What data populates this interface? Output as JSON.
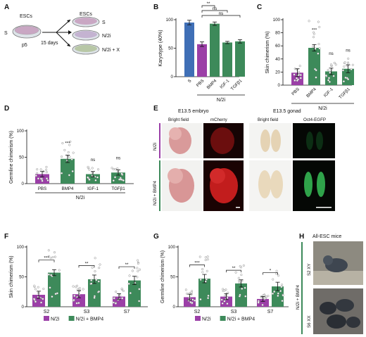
{
  "colors": {
    "purple": "#9b3fa7",
    "blue": "#3f6fb6",
    "green": "#3d8a5a",
    "greenLight": "#7cb98e",
    "dot": "#ffffff"
  },
  "panelA": {
    "letter": "A",
    "escs_left": "ESCs",
    "s_left": "S",
    "p5": "p5",
    "days": "15 days",
    "escs_right": "ESCs",
    "dish1": "S",
    "dish2": "N/2i",
    "dish3": "N/2i + X"
  },
  "panelE": {
    "letter": "E",
    "embryo_header": "E13.5 embryo",
    "gonad_header": "E13.5 gonad",
    "bf1": "Bright field",
    "mcherry": "mCherry",
    "bf2": "Bright field",
    "oct4": "Oct4-EGFP",
    "row1": "N/2i",
    "row2": "N/2i + BMP4"
  },
  "panelH": {
    "letter": "H",
    "title": "All-ESC mice",
    "side": "N/2i + BMP4",
    "row1": "S2 XY",
    "row2": "S6 XX"
  },
  "chart_data": [
    {
      "id": "B",
      "type": "bar",
      "ylabel": "Karyotype (40%)",
      "ylim": [
        0,
        100
      ],
      "ticks": [
        0,
        50,
        100
      ],
      "categories": [
        "S",
        "PBS",
        "BMP4",
        "IGF-1",
        "TGFβ1"
      ],
      "values": [
        95,
        57,
        93,
        60,
        62
      ],
      "errors": [
        4,
        4,
        3,
        2,
        3
      ],
      "colors": [
        "blue",
        "purple",
        "green",
        "green",
        "green"
      ],
      "group_label": "N/2i",
      "brackets": [
        {
          "from": 1,
          "to": 2,
          "text": "**"
        },
        {
          "from": 1,
          "to": 3,
          "text": "ns"
        },
        {
          "from": 1,
          "to": 4,
          "text": "ns"
        }
      ]
    },
    {
      "id": "C",
      "type": "bar",
      "ylabel": "Skin chimerism (%)",
      "ylim": [
        0,
        100
      ],
      "ticks": [
        0,
        20,
        40,
        60,
        80,
        100
      ],
      "categories": [
        "PBS",
        "BMP4",
        "IGF-1",
        "TGFβ1"
      ],
      "values": [
        19,
        57,
        21,
        25
      ],
      "errors": [
        6,
        5,
        5,
        6
      ],
      "colors": [
        "purple",
        "green",
        "green",
        "green"
      ],
      "annotations": [
        "",
        "***",
        "ns",
        "ns"
      ],
      "group_label": "N/2i"
    },
    {
      "id": "D",
      "type": "bar",
      "ylabel": "Germline chimerism (%)",
      "ylim": [
        0,
        100
      ],
      "ticks": [
        0,
        50,
        100
      ],
      "categories": [
        "PBS",
        "BMP4",
        "IGF-1",
        "TGFβ1"
      ],
      "values": [
        18,
        47,
        18,
        21
      ],
      "errors": [
        5,
        7,
        5,
        5
      ],
      "colors": [
        "purple",
        "green",
        "green",
        "green"
      ],
      "annotations": [
        "",
        "***",
        "ns",
        "ns"
      ],
      "group_label": "N/2i"
    },
    {
      "id": "F",
      "type": "bar",
      "ylabel": "Skin chimerism (%)",
      "ylim": [
        0,
        100
      ],
      "ticks": [
        0,
        50,
        100
      ],
      "categories": [
        "S2",
        "S3",
        "S7"
      ],
      "series": [
        {
          "name": "N/2i",
          "values": [
            20,
            21,
            17
          ],
          "errors": [
            6,
            6,
            5
          ],
          "color": "purple"
        },
        {
          "name": "N/2i + BMP4",
          "values": [
            57,
            46,
            44
          ],
          "errors": [
            5,
            7,
            7
          ],
          "color": "green"
        }
      ],
      "annotations": [
        "***",
        "**",
        "**"
      ]
    },
    {
      "id": "G",
      "type": "bar",
      "ylabel": "Germline chimerism (%)",
      "ylim": [
        0,
        100
      ],
      "ticks": [
        0,
        50,
        100
      ],
      "categories": [
        "S2",
        "S3",
        "S7"
      ],
      "series": [
        {
          "name": "N/2i",
          "values": [
            16,
            17,
            13
          ],
          "errors": [
            5,
            5,
            4
          ],
          "color": "purple"
        },
        {
          "name": "N/2i + BMP4",
          "values": [
            47,
            39,
            34
          ],
          "errors": [
            7,
            6,
            7
          ],
          "color": "green"
        }
      ],
      "annotations": [
        "***",
        "**",
        "*"
      ]
    }
  ]
}
